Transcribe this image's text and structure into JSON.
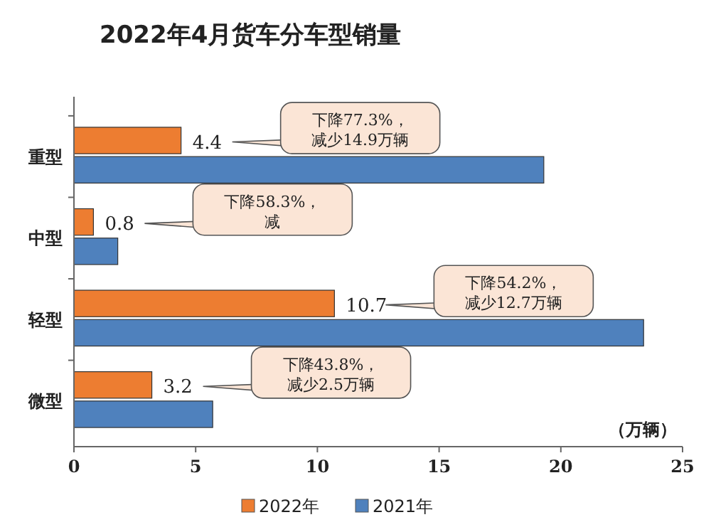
{
  "chart_data": {
    "type": "bar",
    "orientation": "horizontal",
    "title": "2022年4月货车分车型销量",
    "xlabel": "（万辆）",
    "categories": [
      "重型",
      "中型",
      "轻型",
      "微型"
    ],
    "series": [
      {
        "name": "2022年",
        "color": "#ed7d31",
        "values": [
          4.4,
          0.8,
          10.7,
          3.2
        ],
        "value_labels": [
          "4.4",
          "0.8",
          "10.7",
          "3.2"
        ]
      },
      {
        "name": "2021年",
        "color": "#4f81bd",
        "values": [
          19.3,
          1.8,
          23.4,
          5.7
        ]
      }
    ],
    "xlim": [
      0,
      25
    ],
    "xticks": [
      0,
      5,
      10,
      15,
      20,
      25
    ],
    "grid": false,
    "legend": "bottom",
    "annotations": [
      "下降77.3%，减少14.9万辆",
      "下降58.3%，减",
      "下降54.2%，减少12.7万辆",
      "下降43.8%，减少2.5万辆"
    ]
  }
}
